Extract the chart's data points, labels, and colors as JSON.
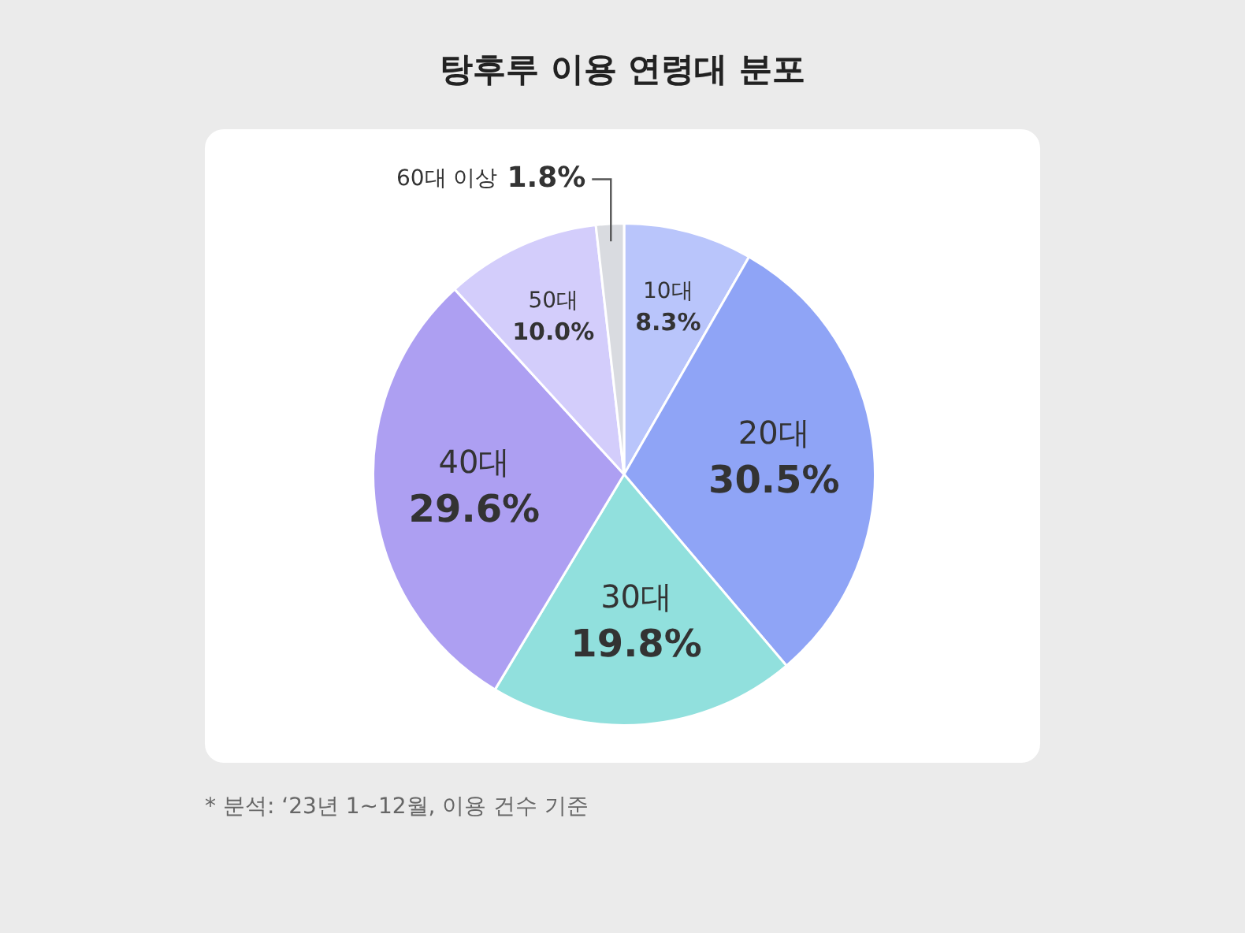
{
  "chart_data": {
    "type": "pie",
    "title": "탕후루 이용 연령대 분포",
    "categories": [
      "10대",
      "20대",
      "30대",
      "40대",
      "50대",
      "60대 이상"
    ],
    "values": [
      8.3,
      30.5,
      19.8,
      29.6,
      10.0,
      1.8
    ],
    "colors": [
      "#b9c5fb",
      "#8fa4f6",
      "#91e0dd",
      "#ad9ff2",
      "#d3cdfb",
      "#d9dbe0"
    ],
    "value_labels": [
      "8.3%",
      "30.5%",
      "19.8%",
      "29.6%",
      "10.0%",
      "1.8%"
    ],
    "annotations": [
      "* 분석: ‘23년 1~12월, 이용 건수 기준"
    ]
  }
}
